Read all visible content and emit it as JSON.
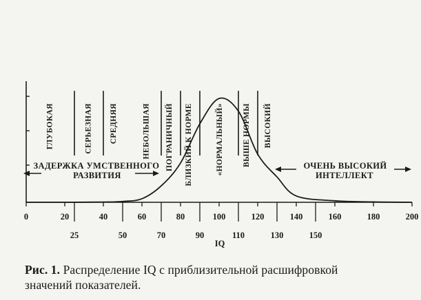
{
  "chart_data": {
    "type": "line",
    "x": [
      0,
      20,
      40,
      50,
      60,
      70,
      80,
      90,
      100,
      110,
      120,
      130,
      140,
      160,
      180,
      200
    ],
    "series": [
      {
        "values": [
          0,
          0,
          0.2,
          0.7,
          2.8,
          13,
          31,
          62,
          82,
          72,
          38,
          20,
          5,
          1.2,
          0.3,
          0
        ]
      }
    ],
    "xlim": [
      0,
      200
    ],
    "ylim": [
      0,
      100
    ],
    "xlabel": "IQ",
    "ticks_major": [
      "0",
      "20",
      "40",
      "60",
      "80",
      "100",
      "120",
      "140",
      "160",
      "180",
      "200"
    ],
    "ticks_minor": [
      "25",
      "50",
      "70",
      "90",
      "110",
      "130",
      "150"
    ],
    "categories": [
      {
        "label": "ГЛУБОКАЯ",
        "x": 12
      },
      {
        "label": "СЕРЬЕЗНАЯ",
        "x": 32
      },
      {
        "label": "СРЕДНЯЯ",
        "x": 45
      },
      {
        "label": "НЕБОЛЬШАЯ",
        "x": 62
      },
      {
        "label": "ПОГРАНИЧНЫЙ",
        "x": 74
      },
      {
        "label": "БЛИЗКИЙ  К  НОРМЕ",
        "x": 84
      },
      {
        "label": "«НОРМАЛЬНЫЙ»",
        "x": 100
      },
      {
        "label": "ВЫШЕ НОРМЫ",
        "x": 114
      },
      {
        "label": "ВЫСОКИЙ",
        "x": 125
      }
    ],
    "dividers": [
      25,
      40,
      70,
      80,
      90,
      110,
      120
    ],
    "annotations": {
      "left_line1": "ЗАДЕРЖКА УМСТВЕННОГО",
      "left_line2": "РАЗВИТИЯ",
      "right_line1": "ОЧЕНЬ ВЫСОКИЙ",
      "right_line2": "ИНТЕЛЛЕКТ"
    }
  },
  "caption": {
    "label": "Рис. 1.",
    "text_line1": " Распределение IQ с приблизительной расшифровкой",
    "text_line2": "значений показателей."
  }
}
